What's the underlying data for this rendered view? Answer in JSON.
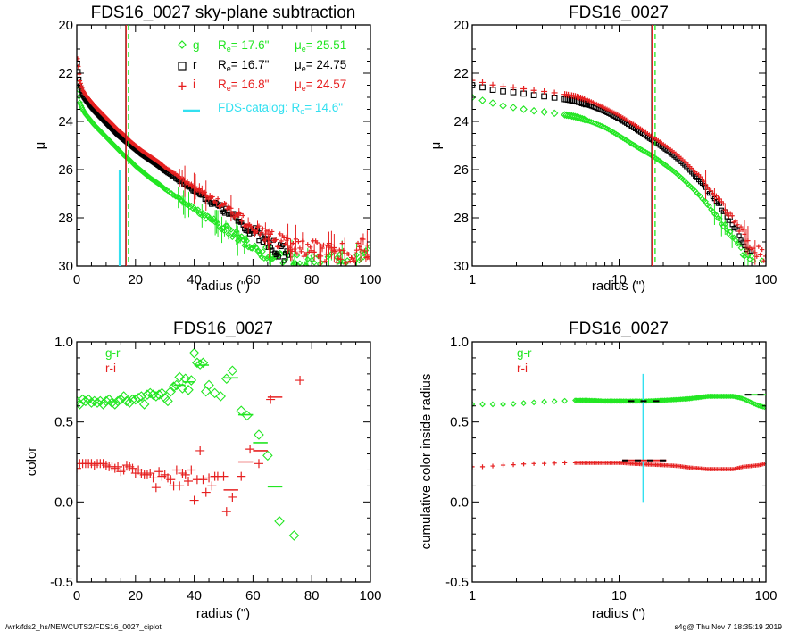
{
  "footer": {
    "left": "/wrk/fds2_hs/NEWCUTS2/FDS16_0027_ciplot",
    "right": "s4g@  Thu Nov  7 18:35:19 2019"
  },
  "colors": {
    "g": "#22e622",
    "r": "#000000",
    "i": "#e62020",
    "catalog": "#33e0f0"
  },
  "chart_data": [
    {
      "id": "tl",
      "type": "scatter",
      "title": "FDS16_0027 sky-plane subtraction",
      "xlabel": "radius (\")",
      "ylabel": "μ",
      "xscale": "linear",
      "xlim": [
        0,
        100
      ],
      "ylim": [
        30,
        20
      ],
      "xticks": [
        "0",
        "20",
        "40",
        "60",
        "80",
        "100"
      ],
      "yticks": [
        "20",
        "22",
        "24",
        "26",
        "28",
        "30"
      ],
      "legend": {
        "placement": "top-right",
        "entries": [
          {
            "band": "g",
            "marker": "diamond",
            "Re_label": "R",
            "Re_sub": "e",
            "Re_value": "=  17.6\"",
            "mu_label": "μ",
            "mu_sub": "e",
            "mu_value": "= 25.51"
          },
          {
            "band": "r",
            "marker": "square",
            "Re_label": "R",
            "Re_sub": "e",
            "Re_value": "=  16.7\"",
            "mu_label": "μ",
            "mu_sub": "e",
            "mu_value": "= 24.75"
          },
          {
            "band": "i",
            "marker": "plus",
            "Re_label": "R",
            "Re_sub": "e",
            "Re_value": "=  16.8\"",
            "mu_label": "μ",
            "mu_sub": "e",
            "mu_value": "= 24.57"
          }
        ],
        "catalog": {
          "text": "FDS-catalog: R",
          "sub": "e",
          "value": "=  14.6\""
        }
      },
      "vlines": [
        {
          "band": "r",
          "x": 16.7,
          "style": "solid"
        },
        {
          "band": "i",
          "x": 16.8,
          "style": "solid"
        },
        {
          "band": "g",
          "x": 17.6,
          "style": "dashed"
        }
      ],
      "catalog_line": {
        "x": 14.6,
        "y_from": 26.0,
        "y_to": 30.0
      },
      "profiles": {
        "g": {
          "mu0": 22.3,
          "mu_inner": 23.4,
          "slope_per_arcsec": 0.077,
          "curvature": 0.00055
        },
        "r": {
          "mu0": 21.8,
          "mu_inner": 22.7,
          "slope_per_arcsec": 0.082,
          "curvature": 0.00045
        },
        "i": {
          "mu0": 21.5,
          "mu_inner": 22.5,
          "slope_per_arcsec": 0.084,
          "curvature": 0.00042
        }
      },
      "series": [
        {
          "name": "g",
          "x": [
            0.3,
            1,
            2,
            3,
            4,
            5,
            6,
            8,
            10,
            12,
            14,
            16,
            18,
            20,
            22,
            25,
            28,
            30,
            33,
            36,
            40,
            44,
            48,
            52,
            56,
            60,
            64,
            68,
            72,
            76,
            80,
            85,
            90,
            95,
            100
          ],
          "y": [
            22.4,
            23.2,
            23.5,
            23.7,
            23.85,
            24.0,
            24.15,
            24.4,
            24.65,
            24.9,
            25.15,
            25.4,
            25.6,
            25.85,
            26.05,
            26.35,
            26.6,
            26.8,
            27.05,
            27.3,
            27.6,
            27.95,
            28.25,
            28.55,
            28.85,
            29.15,
            29.45,
            29.6,
            29.75,
            29.85,
            29.95,
            29.9,
            29.85,
            29.9,
            29.7
          ]
        },
        {
          "name": "r",
          "x": [
            0.3,
            1,
            2,
            3,
            4,
            5,
            6,
            8,
            10,
            12,
            14,
            16,
            18,
            20,
            22,
            25,
            28,
            30,
            33,
            36,
            40,
            44,
            48,
            52,
            56,
            60,
            64,
            68,
            72
          ],
          "y": [
            21.6,
            22.5,
            22.9,
            23.1,
            23.25,
            23.4,
            23.55,
            23.8,
            24.05,
            24.3,
            24.55,
            24.75,
            24.95,
            25.15,
            25.35,
            25.6,
            25.85,
            26.05,
            26.3,
            26.55,
            26.85,
            27.2,
            27.5,
            27.85,
            28.2,
            28.55,
            29.0,
            29.3,
            29.55
          ]
        },
        {
          "name": "i",
          "x": [
            0.3,
            1,
            2,
            3,
            4,
            5,
            6,
            8,
            10,
            12,
            14,
            16,
            18,
            20,
            22,
            25,
            28,
            30,
            33,
            36,
            40,
            44,
            48,
            52,
            56,
            60,
            64,
            68,
            72,
            76,
            80,
            85,
            90,
            95,
            100
          ],
          "y": [
            21.4,
            22.3,
            22.7,
            22.9,
            23.05,
            23.2,
            23.35,
            23.6,
            23.85,
            24.1,
            24.35,
            24.55,
            24.8,
            25.0,
            25.2,
            25.45,
            25.7,
            25.9,
            26.15,
            26.4,
            26.75,
            27.05,
            27.35,
            27.7,
            28.05,
            28.4,
            28.75,
            28.9,
            29.05,
            29.3,
            29.2,
            29.4,
            29.5,
            29.45,
            29.2
          ]
        }
      ]
    },
    {
      "id": "tr",
      "type": "scatter",
      "title": "FDS16_0027",
      "xlabel": "radius (\")",
      "ylabel": "μ",
      "xscale": "log",
      "xlim": [
        1,
        100
      ],
      "ylim": [
        30,
        20
      ],
      "xticks": [
        "1",
        "10",
        "100"
      ],
      "yticks": [
        "20",
        "22",
        "24",
        "26",
        "28",
        "30"
      ],
      "vlines": [
        {
          "band": "r",
          "x": 16.7,
          "style": "solid"
        },
        {
          "band": "i",
          "x": 16.8,
          "style": "solid"
        },
        {
          "band": "g",
          "x": 17.6,
          "style": "dashed"
        }
      ],
      "series": [
        {
          "name": "g",
          "x": [
            1,
            1.2,
            1.4,
            1.6,
            2,
            2.5,
            3,
            4,
            5,
            6,
            8,
            10,
            12,
            14,
            16,
            18,
            20,
            25,
            30,
            35,
            40,
            50,
            60,
            70,
            80,
            90,
            100
          ],
          "y": [
            23.0,
            23.15,
            23.25,
            23.35,
            23.45,
            23.55,
            23.6,
            23.7,
            23.8,
            23.95,
            24.25,
            24.6,
            24.9,
            25.15,
            25.35,
            25.55,
            25.75,
            26.2,
            26.65,
            27.05,
            27.45,
            28.2,
            28.85,
            29.4,
            29.8,
            30.0,
            30.0
          ]
        },
        {
          "name": "r",
          "x": [
            1,
            1.2,
            1.4,
            1.6,
            2,
            2.5,
            3,
            4,
            5,
            6,
            8,
            10,
            12,
            14,
            16,
            18,
            20,
            25,
            30,
            35,
            40,
            50,
            60,
            70,
            80
          ],
          "y": [
            22.5,
            22.6,
            22.7,
            22.75,
            22.8,
            22.9,
            22.95,
            23.05,
            23.15,
            23.3,
            23.6,
            23.9,
            24.2,
            24.45,
            24.7,
            24.9,
            25.1,
            25.55,
            26.0,
            26.45,
            26.85,
            27.6,
            28.3,
            28.9,
            29.6
          ]
        },
        {
          "name": "i",
          "x": [
            1,
            1.2,
            1.4,
            1.6,
            2,
            2.5,
            3,
            4,
            5,
            6,
            8,
            10,
            12,
            14,
            16,
            18,
            20,
            25,
            30,
            35,
            40,
            50,
            60,
            70,
            80,
            90,
            100
          ],
          "y": [
            22.3,
            22.4,
            22.5,
            22.55,
            22.6,
            22.7,
            22.75,
            22.85,
            22.95,
            23.1,
            23.45,
            23.75,
            24.05,
            24.3,
            24.55,
            24.75,
            24.95,
            25.4,
            25.85,
            26.25,
            26.7,
            27.4,
            28.1,
            28.7,
            29.2,
            29.4,
            29.5
          ]
        }
      ]
    },
    {
      "id": "bl",
      "type": "scatter",
      "title": "FDS16_0027",
      "xlabel": "radius (\")",
      "ylabel": "color",
      "xscale": "linear",
      "xlim": [
        0,
        100
      ],
      "ylim": [
        -0.5,
        1.0
      ],
      "xticks": [
        "0",
        "20",
        "40",
        "60",
        "80",
        "100"
      ],
      "yticks": [
        "1.0",
        "0.5",
        "0.0",
        "-0.5"
      ],
      "legend": {
        "placement": "top-left",
        "entries": [
          {
            "band": "g",
            "label": "g-r"
          },
          {
            "band": "i",
            "label": "r-i"
          }
        ]
      },
      "series": [
        {
          "name": "g-r",
          "marker": "diamond",
          "x": [
            0,
            1,
            2,
            3,
            4,
            5,
            6,
            7,
            8,
            9,
            10,
            11,
            12,
            13,
            14,
            15,
            16,
            17,
            18,
            19,
            20,
            21,
            22,
            23,
            24,
            25,
            26,
            27,
            28,
            29,
            30,
            31,
            32,
            33,
            34,
            35,
            36,
            37,
            38,
            39,
            40,
            41,
            42,
            43,
            44,
            45,
            47,
            49,
            51,
            53,
            56,
            58,
            62,
            65,
            69,
            74
          ],
          "y": [
            0.63,
            0.61,
            0.64,
            0.63,
            0.64,
            0.62,
            0.63,
            0.62,
            0.63,
            0.61,
            0.63,
            0.64,
            0.62,
            0.61,
            0.63,
            0.64,
            0.66,
            0.63,
            0.62,
            0.64,
            0.64,
            0.65,
            0.66,
            0.61,
            0.67,
            0.68,
            0.67,
            0.66,
            0.67,
            0.68,
            0.65,
            0.63,
            0.69,
            0.72,
            0.73,
            0.78,
            0.71,
            0.77,
            0.7,
            0.76,
            0.93,
            0.87,
            0.86,
            0.87,
            0.69,
            0.73,
            0.68,
            0.66,
            0.77,
            0.82,
            0.57,
            0.54,
            0.42,
            0.29,
            -0.12,
            -0.21
          ]
        },
        {
          "name": "r-i",
          "marker": "plus",
          "x": [
            0,
            1,
            2,
            3,
            4,
            5,
            6,
            7,
            8,
            9,
            10,
            11,
            12,
            13,
            14,
            15,
            16,
            17,
            18,
            19,
            20,
            21,
            22,
            23,
            24,
            25,
            26,
            27,
            28,
            29,
            30,
            31,
            32,
            33,
            34,
            35,
            36,
            37,
            38,
            39,
            40,
            41,
            42,
            43,
            44,
            45,
            46,
            47,
            48,
            50,
            51,
            53,
            56,
            59,
            62,
            66,
            76
          ],
          "y": [
            0.21,
            0.24,
            0.24,
            0.24,
            0.24,
            0.24,
            0.23,
            0.24,
            0.24,
            0.24,
            0.23,
            0.22,
            0.22,
            0.21,
            0.22,
            0.19,
            0.2,
            0.23,
            0.22,
            0.21,
            0.18,
            0.2,
            0.18,
            0.17,
            0.17,
            0.18,
            0.15,
            0.09,
            0.19,
            0.16,
            0.17,
            0.15,
            0.14,
            0.1,
            0.2,
            0.1,
            0.18,
            0.17,
            0.13,
            0.2,
            0.01,
            0.14,
            0.32,
            0.14,
            0.06,
            0.15,
            0.1,
            0.16,
            0.16,
            0.16,
            -0.06,
            0.03,
            0.16,
            0.33,
            0.24,
            0.64,
            0.76
          ]
        }
      ],
      "bin_means": [
        {
          "band": "g",
          "x_from": 33,
          "x_to": 37,
          "y": 0.73
        },
        {
          "band": "g",
          "x_from": 36,
          "x_to": 40,
          "y": 0.75
        },
        {
          "band": "g",
          "x_from": 40,
          "x_to": 45,
          "y": 0.855
        },
        {
          "band": "g",
          "x_from": 50,
          "x_to": 55,
          "y": 0.775
        },
        {
          "band": "g",
          "x_from": 55,
          "x_to": 60,
          "y": 0.545
        },
        {
          "band": "g",
          "x_from": 60,
          "x_to": 65,
          "y": 0.37
        },
        {
          "band": "g",
          "x_from": 65,
          "x_to": 70,
          "y": 0.095
        },
        {
          "band": "i",
          "x_from": 50,
          "x_to": 55,
          "y": 0.075
        },
        {
          "band": "i",
          "x_from": 55,
          "x_to": 60,
          "y": 0.25
        },
        {
          "band": "i",
          "x_from": 60,
          "x_to": 65,
          "y": 0.32
        },
        {
          "band": "i",
          "x_from": 65,
          "x_to": 70,
          "y": 0.655
        }
      ]
    },
    {
      "id": "br",
      "type": "scatter",
      "title": "FDS16_0027",
      "xlabel": "radius (\")",
      "ylabel": "cumulative color inside radius",
      "xscale": "log",
      "xlim": [
        1,
        100
      ],
      "ylim": [
        -0.5,
        1.0
      ],
      "xticks": [
        "1",
        "10",
        "100"
      ],
      "yticks": [
        "1.0",
        "0.5",
        "0.0",
        "-0.5"
      ],
      "legend": {
        "placement": "top-left",
        "entries": [
          {
            "band": "g",
            "label": "g-r"
          },
          {
            "band": "i",
            "label": "r-i"
          }
        ]
      },
      "catalog_line": {
        "x": 14.6,
        "y_from": 0.0,
        "y_to": 0.8
      },
      "series": [
        {
          "name": "g-r",
          "marker": "diamond",
          "x": [
            1,
            1.2,
            1.4,
            1.6,
            1.8,
            2,
            2.5,
            3,
            4,
            5,
            6,
            8,
            10,
            12,
            15,
            20,
            25,
            30,
            40,
            50,
            60,
            70,
            80,
            90,
            100
          ],
          "y": [
            0.61,
            0.61,
            0.61,
            0.61,
            0.61,
            0.615,
            0.62,
            0.625,
            0.63,
            0.635,
            0.635,
            0.63,
            0.63,
            0.63,
            0.63,
            0.635,
            0.64,
            0.645,
            0.66,
            0.66,
            0.66,
            0.645,
            0.62,
            0.6,
            0.59
          ]
        },
        {
          "name": "r-i",
          "marker": "plus",
          "x": [
            1,
            1.2,
            1.4,
            1.6,
            1.8,
            2,
            2.5,
            3,
            4,
            5,
            6,
            8,
            10,
            12,
            15,
            20,
            25,
            30,
            40,
            50,
            60,
            70,
            80,
            90,
            100
          ],
          "y": [
            0.22,
            0.22,
            0.225,
            0.23,
            0.23,
            0.235,
            0.24,
            0.24,
            0.245,
            0.245,
            0.245,
            0.245,
            0.245,
            0.24,
            0.235,
            0.23,
            0.225,
            0.215,
            0.205,
            0.205,
            0.205,
            0.22,
            0.225,
            0.23,
            0.24
          ]
        }
      ],
      "bin_means": [
        {
          "band": "g",
          "x_from": 11.5,
          "x_to": 20.5,
          "y": 0.63,
          "style": "black-dashed"
        },
        {
          "band": "g",
          "x_from": 72,
          "x_to": 100,
          "y": 0.67,
          "style": "mixed"
        },
        {
          "band": "i",
          "x_from": 10.5,
          "x_to": 21,
          "y": 0.26,
          "style": "mixed"
        }
      ]
    }
  ]
}
